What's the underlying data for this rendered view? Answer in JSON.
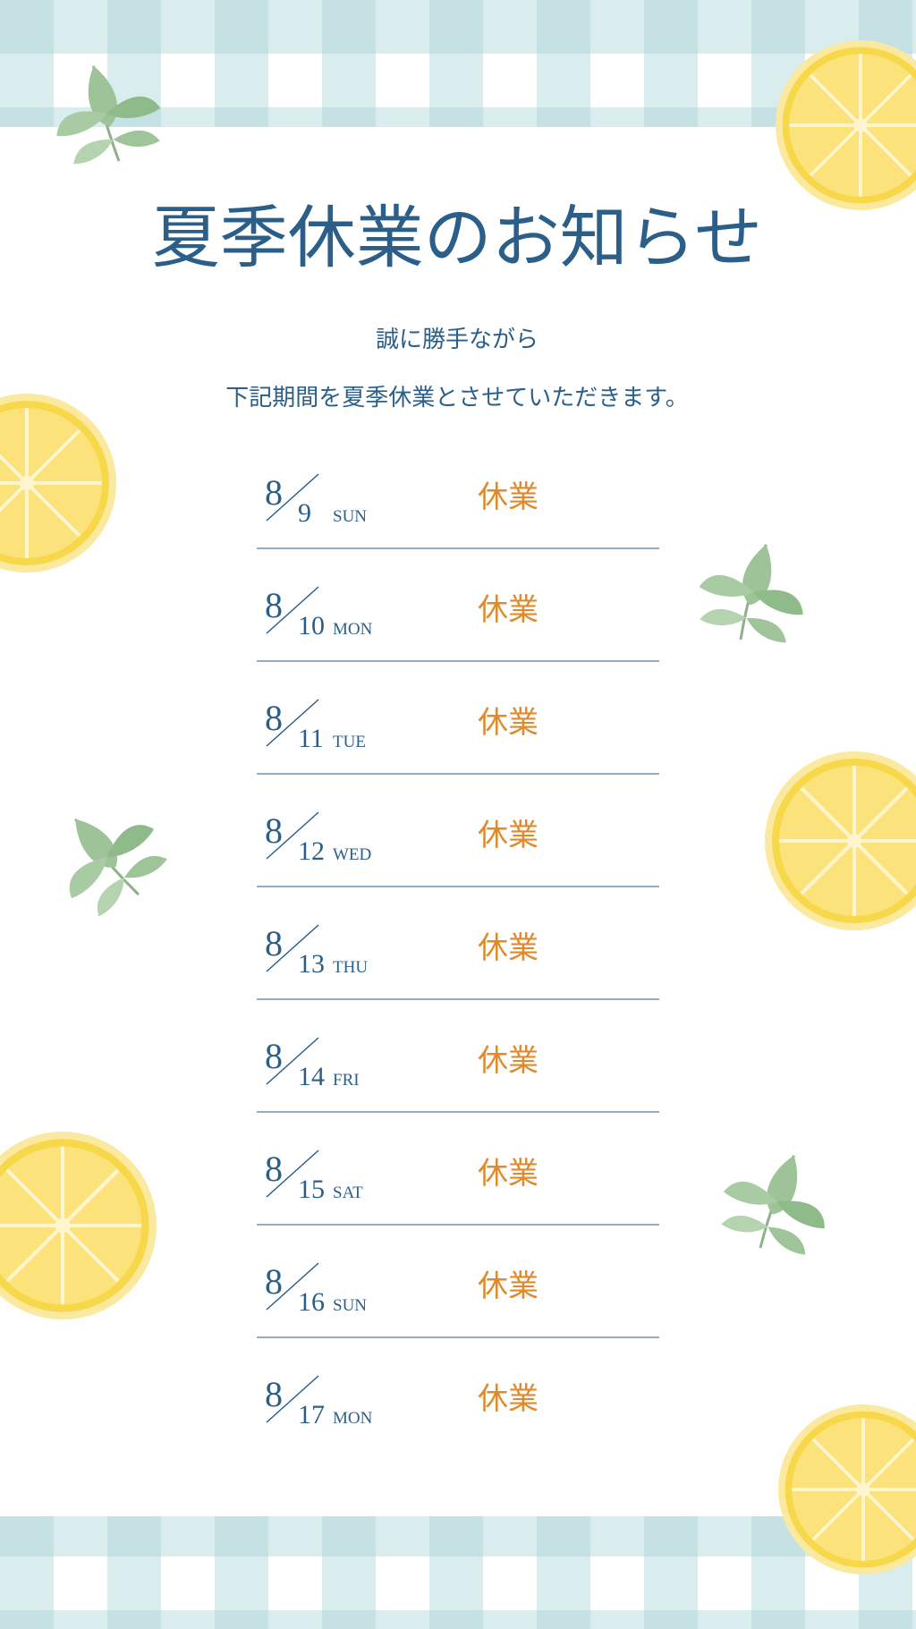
{
  "title": "夏季休業のお知らせ",
  "intro": [
    "誠に勝手ながら",
    "下記期間を夏季休業とさせていただきます。"
  ],
  "schedule": [
    {
      "month": "8",
      "day": "9",
      "weekday": "SUN",
      "status": "休業"
    },
    {
      "month": "8",
      "day": "10",
      "weekday": "MON",
      "status": "休業"
    },
    {
      "month": "8",
      "day": "11",
      "weekday": "TUE",
      "status": "休業"
    },
    {
      "month": "8",
      "day": "12",
      "weekday": "WED",
      "status": "休業"
    },
    {
      "month": "8",
      "day": "13",
      "weekday": "THU",
      "status": "休業"
    },
    {
      "month": "8",
      "day": "14",
      "weekday": "FRI",
      "status": "休業"
    },
    {
      "month": "8",
      "day": "15",
      "weekday": "SAT",
      "status": "休業"
    },
    {
      "month": "8",
      "day": "16",
      "weekday": "SUN",
      "status": "休業"
    },
    {
      "month": "8",
      "day": "17",
      "weekday": "MON",
      "status": "休業"
    }
  ]
}
